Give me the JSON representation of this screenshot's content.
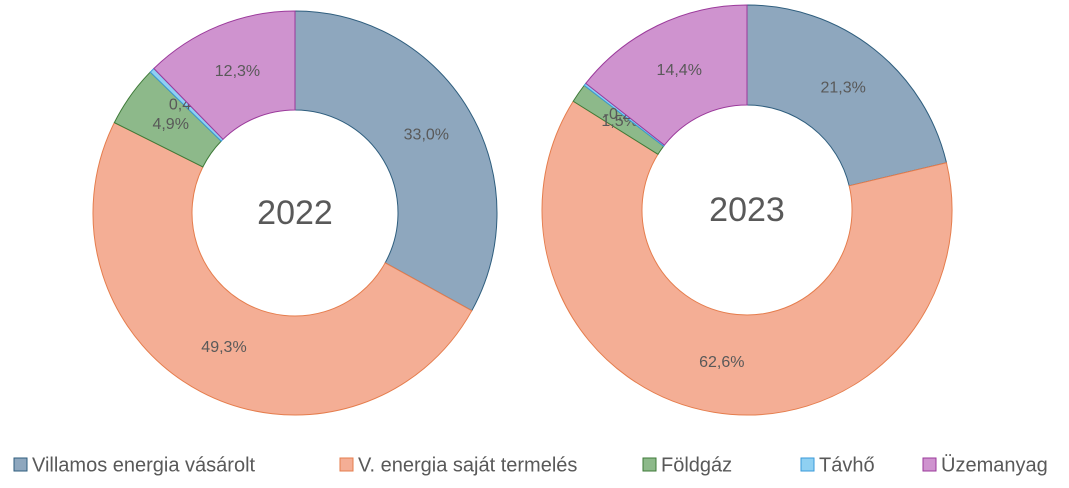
{
  "chart_data": [
    {
      "type": "pie",
      "title": "2022",
      "categories": [
        "Villamos energia vásárolt",
        "V. energia saját termelés",
        "Földgáz",
        "Távhő",
        "Üzemanyag"
      ],
      "colors": [
        "#8ea7be",
        "#f4ae95",
        "#8db98a",
        "#8fd0f2",
        "#cf93cf"
      ],
      "values": [
        33.0,
        49.3,
        4.9,
        0.4,
        12.3
      ],
      "value_labels": [
        "33,0%",
        "49,3%",
        "4,9%",
        "0,4%",
        "12,3%"
      ]
    },
    {
      "type": "pie",
      "title": "2023",
      "categories": [
        "Villamos energia vásárolt",
        "V. energia saját termelés",
        "Földgáz",
        "Távhő",
        "Üzemanyag"
      ],
      "colors": [
        "#8ea7be",
        "#f4ae95",
        "#8db98a",
        "#8fd0f2",
        "#cf93cf"
      ],
      "values": [
        21.3,
        62.6,
        1.5,
        -0.2,
        14.4
      ],
      "value_labels": [
        "21,3%",
        "62,6%",
        "1,5%",
        "-0,2%",
        "14,4%"
      ]
    }
  ]
}
